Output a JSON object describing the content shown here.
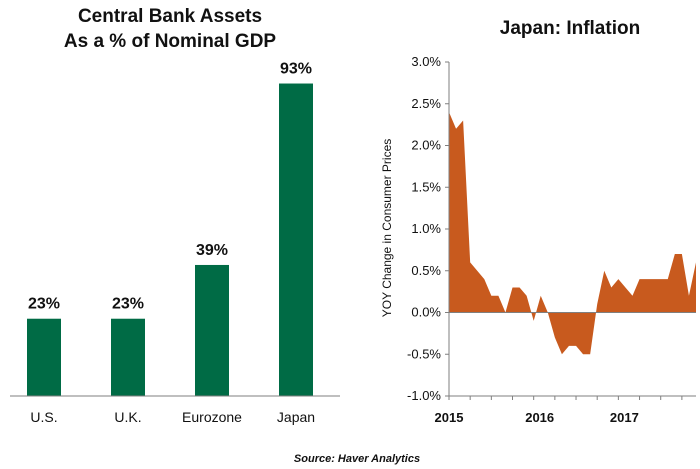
{
  "chart_data": [
    {
      "type": "bar",
      "title": "Central Bank Assets",
      "subtitle": "As a % of Nominal GDP",
      "categories": [
        "U.S.",
        "U.K.",
        "Eurozone",
        "Japan"
      ],
      "values": [
        23,
        23,
        39,
        93
      ],
      "value_labels": [
        "23%",
        "23%",
        "39%",
        "93%"
      ],
      "bar_color": "#006b45",
      "ylim": [
        0,
        100
      ],
      "grid": false
    },
    {
      "type": "area",
      "title": "Japan: Inflation",
      "ylabel": "YOY Change in Consumer Prices",
      "y_ticks": [
        -1.0,
        -0.5,
        0.0,
        0.5,
        1.0,
        1.5,
        2.0,
        2.5,
        3.0
      ],
      "y_tick_labels": [
        "-1.0%",
        "-0.5%",
        "0.0%",
        "0.5%",
        "1.0%",
        "1.5%",
        "2.0%",
        "2.5%",
        "3.0%"
      ],
      "ylim": [
        -1.0,
        3.0
      ],
      "x_ticks": [
        "2015",
        "2016",
        "2017"
      ],
      "xlim": [
        "2015-01",
        "2017-12"
      ],
      "x": [
        "2015-01",
        "2015-02",
        "2015-03",
        "2015-04",
        "2015-05",
        "2015-06",
        "2015-07",
        "2015-08",
        "2015-09",
        "2015-10",
        "2015-11",
        "2015-12",
        "2016-01",
        "2016-02",
        "2016-03",
        "2016-04",
        "2016-05",
        "2016-06",
        "2016-07",
        "2016-08",
        "2016-09",
        "2016-10",
        "2016-11",
        "2016-12",
        "2017-01",
        "2017-02",
        "2017-03",
        "2017-04",
        "2017-05",
        "2017-06",
        "2017-07",
        "2017-08",
        "2017-09",
        "2017-10",
        "2017-11",
        "2017-12"
      ],
      "y": [
        2.4,
        2.2,
        2.3,
        0.6,
        0.5,
        0.4,
        0.2,
        0.2,
        0.0,
        0.3,
        0.3,
        0.2,
        -0.1,
        0.2,
        0.0,
        -0.3,
        -0.5,
        -0.4,
        -0.4,
        -0.5,
        -0.5,
        0.1,
        0.5,
        0.3,
        0.4,
        0.3,
        0.2,
        0.4,
        0.4,
        0.4,
        0.4,
        0.4,
        0.7,
        0.7,
        0.2,
        0.6
      ],
      "fill_color": "#c85a1e",
      "grid": false
    }
  ],
  "source": "Source: Haver Analytics"
}
